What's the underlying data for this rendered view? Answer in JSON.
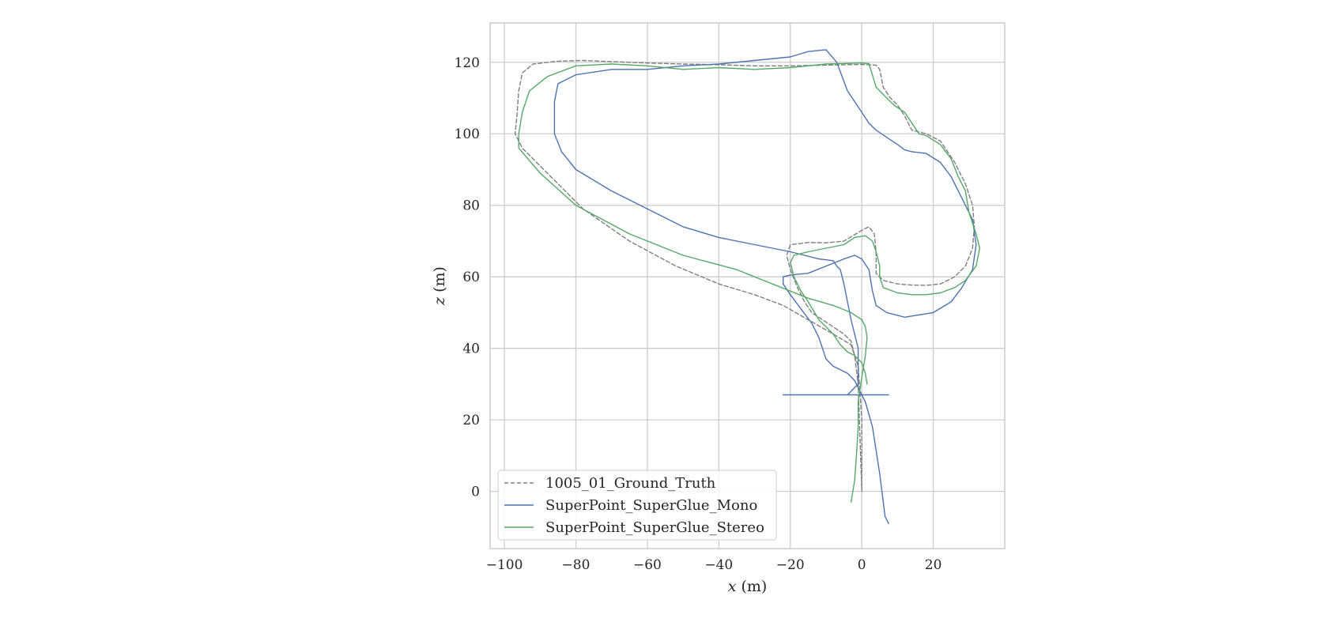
{
  "chart_data": {
    "type": "line",
    "title": "",
    "xlabel_var": "x",
    "xlabel_unit": " (m)",
    "ylabel_var": "z",
    "ylabel_unit": " (m)",
    "xlim": [
      -104,
      40
    ],
    "ylim": [
      -16,
      131
    ],
    "xticks": [
      -100,
      -80,
      -60,
      -40,
      -20,
      0,
      20
    ],
    "xtick_labels": [
      "−100",
      "−80",
      "−60",
      "−40",
      "−20",
      "0",
      "20"
    ],
    "yticks": [
      0,
      20,
      40,
      60,
      80,
      100,
      120
    ],
    "ytick_labels": [
      "0",
      "20",
      "40",
      "60",
      "80",
      "100",
      "120"
    ],
    "grid": true,
    "legend_position": "lower-left",
    "series": [
      {
        "name": "1005_01_Ground_Truth",
        "color": "#7f7f7f",
        "dashed": true,
        "x": [
          0,
          0,
          -1,
          -3,
          -8,
          -15,
          -22,
          -30,
          -40,
          -52,
          -65,
          -78,
          -88,
          -95,
          -97,
          -96.5,
          -96,
          -95,
          -92,
          -85,
          -78,
          -70,
          -60,
          -50,
          -40,
          -30,
          -20,
          -10,
          0,
          4,
          5,
          6,
          8,
          10,
          12,
          14,
          18,
          22,
          26,
          29,
          31,
          31.5,
          31,
          29,
          26,
          22,
          18,
          14,
          10,
          6,
          4,
          4,
          3.5,
          2,
          0,
          -5,
          -10,
          -15,
          -20,
          -21,
          -20,
          -18,
          -16,
          -14,
          -11,
          -8,
          -5,
          -3,
          -2,
          -1,
          -0.5,
          0
        ],
        "y": [
          0,
          20,
          35,
          41,
          44,
          48,
          52,
          55,
          58,
          63,
          70,
          79,
          89,
          96,
          100,
          105,
          112,
          117,
          119.5,
          120.3,
          120.5,
          120.2,
          119.8,
          119.5,
          119.3,
          119,
          119,
          119.2,
          119.4,
          119.2,
          118,
          113,
          110,
          108,
          105,
          101,
          100,
          98,
          92,
          86,
          80,
          74,
          68,
          63,
          60,
          58,
          57.6,
          57.7,
          58,
          59,
          61,
          67,
          72,
          74,
          73,
          70,
          69.5,
          69.6,
          69,
          66,
          62,
          57,
          53,
          50,
          48,
          46,
          44,
          42,
          38,
          30,
          15,
          0
        ]
      },
      {
        "name": "SuperPoint_SuperGlue_Mono",
        "color": "#4c72b0",
        "dashed": false,
        "x": [
          7.5,
          6.5,
          5,
          3,
          1,
          -1,
          -2,
          -4,
          -6,
          -8,
          -10,
          -12,
          -14,
          -17,
          -20,
          -22,
          -22,
          -20,
          -15,
          -10,
          -5,
          -2,
          0,
          2,
          3,
          4,
          7,
          12,
          20,
          25,
          28,
          31,
          32,
          31,
          28,
          25,
          22,
          18,
          14,
          12,
          10,
          7,
          4,
          2,
          0,
          -4,
          -7,
          -10,
          -15,
          -20,
          -30,
          -40,
          -50,
          -60,
          -70,
          -80,
          -85,
          -86,
          -86,
          -84,
          -80,
          -70,
          -60,
          -50,
          -40,
          -30,
          -20,
          -12,
          -8,
          -7,
          -6,
          -5,
          -4,
          -3,
          -2,
          -1,
          -1,
          -1,
          -1,
          -2,
          -3,
          -4,
          -6,
          -8,
          -11,
          -14,
          -17,
          -20,
          -22,
          -22,
          -20,
          -16,
          -12,
          -8,
          -6,
          -4,
          -2,
          0,
          2,
          4,
          6,
          7.5
        ],
        "y": [
          -9,
          -7,
          5,
          18,
          25,
          29,
          31,
          33,
          34,
          35,
          37,
          43,
          47,
          51,
          55,
          58,
          60,
          60.5,
          61,
          63,
          65,
          66,
          65,
          62,
          56,
          52,
          50,
          48.7,
          50,
          53,
          57,
          62,
          69,
          76,
          82,
          88,
          92,
          94.5,
          95,
          95.5,
          97,
          99,
          101,
          103,
          106,
          112,
          120,
          123.5,
          123,
          121.5,
          120.5,
          119.5,
          119,
          118,
          118,
          116.5,
          114,
          109,
          100,
          95,
          90,
          84,
          79,
          74,
          71,
          69,
          67,
          65,
          64.5,
          63,
          62,
          58,
          53,
          48,
          44,
          40,
          36,
          32,
          30,
          29,
          28,
          27,
          27,
          27,
          27,
          27,
          27,
          27,
          27,
          27,
          27,
          27,
          27,
          27,
          27,
          27,
          27,
          27,
          27,
          27,
          27,
          27
        ]
      },
      {
        "name": "SuperPoint_SuperGlue_Stereo",
        "color": "#55a868",
        "dashed": false,
        "x": [
          -3,
          -2,
          -1.5,
          -1,
          -1,
          0,
          1,
          1.5,
          1,
          0,
          -3,
          -8,
          -15,
          -25,
          -35,
          -50,
          -65,
          -80,
          -90,
          -96,
          -96,
          -95,
          -93,
          -88,
          -80,
          -70,
          -60,
          -50,
          -40,
          -30,
          -20,
          -10,
          0,
          2,
          2.5,
          4,
          7,
          9,
          12,
          14,
          16,
          18,
          22,
          25,
          27,
          29,
          30,
          32,
          33,
          32,
          29,
          26,
          22,
          18,
          14,
          10,
          6,
          5,
          5,
          4,
          3,
          1,
          -2,
          -5,
          -10,
          -15,
          -19,
          -20,
          -19,
          -17,
          -15,
          -12,
          -10,
          -8,
          -6,
          -4,
          -2,
          -1,
          0,
          1,
          1.5
        ],
        "y": [
          -3,
          3,
          10,
          18,
          25,
          32,
          38,
          43,
          46,
          48,
          50,
          52,
          54,
          58,
          62,
          66,
          72,
          80,
          89,
          96,
          100,
          106,
          112,
          116,
          119,
          119.5,
          119,
          118,
          118.5,
          118,
          118.5,
          119.5,
          119.8,
          119.6,
          118,
          113,
          110,
          108,
          106,
          103,
          100,
          99.5,
          97,
          93,
          88,
          84,
          78,
          72,
          68,
          63,
          59,
          57,
          55.5,
          55,
          55,
          55.5,
          57,
          60,
          63,
          67,
          70,
          71.5,
          71,
          69,
          68,
          67,
          66,
          64,
          60,
          56,
          53,
          48,
          46,
          44,
          41,
          39,
          38,
          37,
          36,
          33,
          30
        ]
      }
    ]
  }
}
